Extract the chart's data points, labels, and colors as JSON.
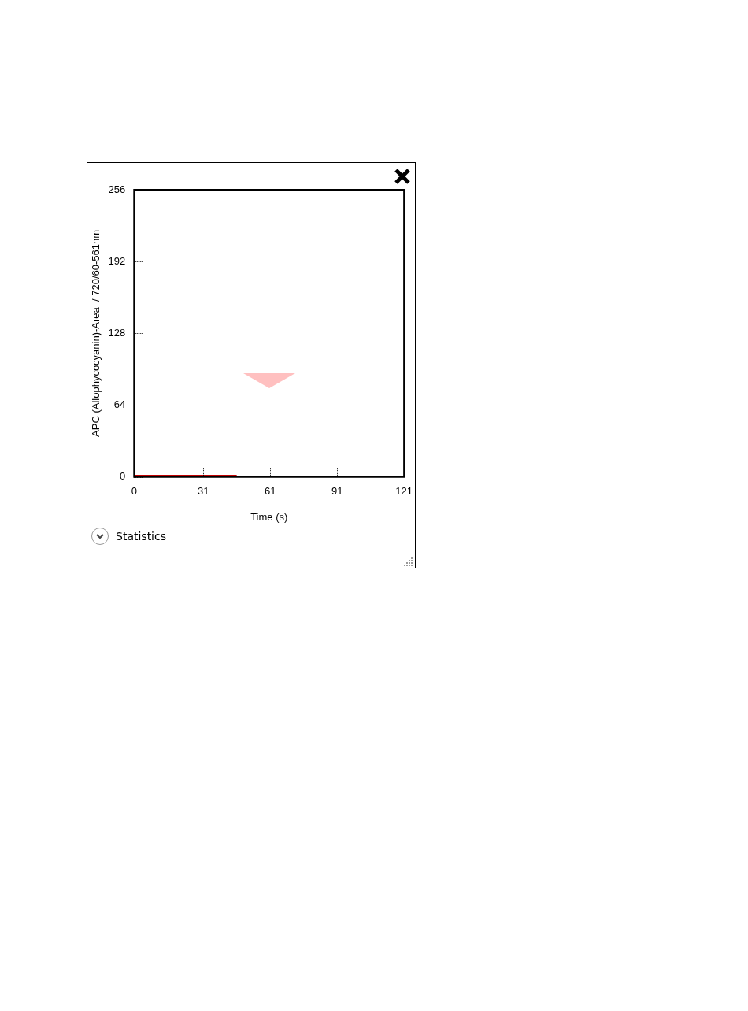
{
  "chart_data": {
    "type": "line",
    "xlabel": "Time (s)",
    "ylabel": "APC (Allophycocyanin)-Area  / 720/60-561nm",
    "series": [
      {
        "color": "#c00000",
        "x": [
          0,
          46
        ],
        "values": [
          1,
          1
        ]
      }
    ],
    "xlim": [
      0,
      121
    ],
    "xticks": [
      0,
      31,
      61,
      91,
      121
    ],
    "ylim": [
      0,
      256
    ],
    "yticks": [
      0,
      64,
      128,
      192,
      256
    ],
    "grid": false,
    "legend": false,
    "marker": "none",
    "line_style": "solid",
    "annotations": [
      "Statistics"
    ]
  }
}
